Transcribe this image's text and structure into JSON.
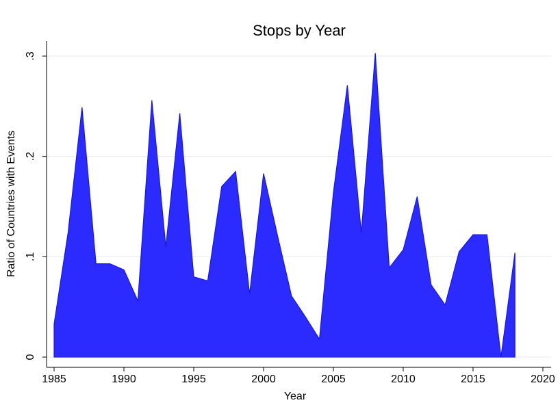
{
  "chart_data": {
    "type": "area",
    "title": "Stops by Year",
    "xlabel": "Year",
    "ylabel": "Ratio of Countries with Events",
    "x": [
      1985,
      1986,
      1987,
      1988,
      1989,
      1990,
      1991,
      1992,
      1993,
      1994,
      1995,
      1996,
      1997,
      1998,
      1999,
      2000,
      2001,
      2002,
      2003,
      2004,
      2005,
      2006,
      2007,
      2008,
      2009,
      2010,
      2011,
      2012,
      2013,
      2014,
      2015,
      2016,
      2017,
      2018
    ],
    "values": [
      0.033,
      0.124,
      0.249,
      0.093,
      0.093,
      0.087,
      0.056,
      0.256,
      0.11,
      0.243,
      0.08,
      0.076,
      0.17,
      0.185,
      0.063,
      0.183,
      0.121,
      0.061,
      0.04,
      0.018,
      0.164,
      0.271,
      0.124,
      0.303,
      0.089,
      0.107,
      0.16,
      0.072,
      0.052,
      0.105,
      0.122,
      0.122,
      0,
      0.104
    ],
    "color": "#2b2bff",
    "line_color": "#1a1ad0",
    "xlim": [
      1984.46,
      2020.59
    ],
    "xticks": [
      1985,
      1990,
      1995,
      2000,
      2005,
      2010,
      2015,
      2020
    ],
    "ylim": [
      -0.0102,
      0.315
    ],
    "yticks": [
      0,
      {
        "value": 0.1,
        "label": ".1"
      },
      {
        "value": 0.2,
        "label": ".2"
      },
      {
        "value": 0.3,
        "label": ".3"
      }
    ],
    "grid": true
  }
}
